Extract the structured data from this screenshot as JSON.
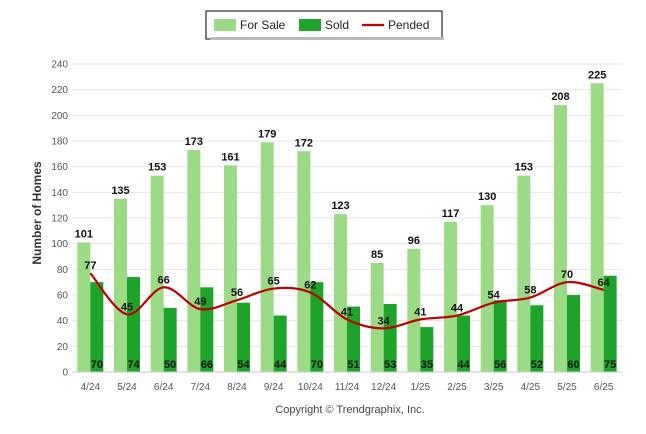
{
  "chart_data": {
    "type": "bar",
    "categories": [
      "4/24",
      "5/24",
      "6/24",
      "7/24",
      "8/24",
      "9/24",
      "10/24",
      "11/24",
      "12/24",
      "1/25",
      "2/25",
      "3/25",
      "4/25",
      "5/25",
      "6/25"
    ],
    "series": [
      {
        "name": "For Sale",
        "kind": "bar",
        "color": "#9bdb86",
        "values": [
          101,
          135,
          153,
          173,
          161,
          179,
          172,
          123,
          85,
          96,
          117,
          130,
          153,
          208,
          225
        ]
      },
      {
        "name": "Sold",
        "kind": "bar",
        "color": "#1fa42b",
        "values": [
          70,
          74,
          50,
          66,
          54,
          44,
          70,
          51,
          53,
          35,
          44,
          56,
          52,
          60,
          75
        ]
      },
      {
        "name": "Pended",
        "kind": "line",
        "color": "#c00000",
        "values": [
          77,
          45,
          66,
          49,
          56,
          65,
          62,
          41,
          34,
          41,
          44,
          54,
          58,
          70,
          64
        ]
      }
    ],
    "ylabel": "Number of Homes",
    "xlabel": "",
    "ylim": [
      0,
      240
    ],
    "yticks": [
      0,
      20,
      40,
      60,
      80,
      100,
      120,
      140,
      160,
      180,
      200,
      220,
      240
    ],
    "grid": true,
    "legend_position": "top-center"
  },
  "footer": {
    "copyright": "Copyright © Trendgraphix, Inc."
  }
}
